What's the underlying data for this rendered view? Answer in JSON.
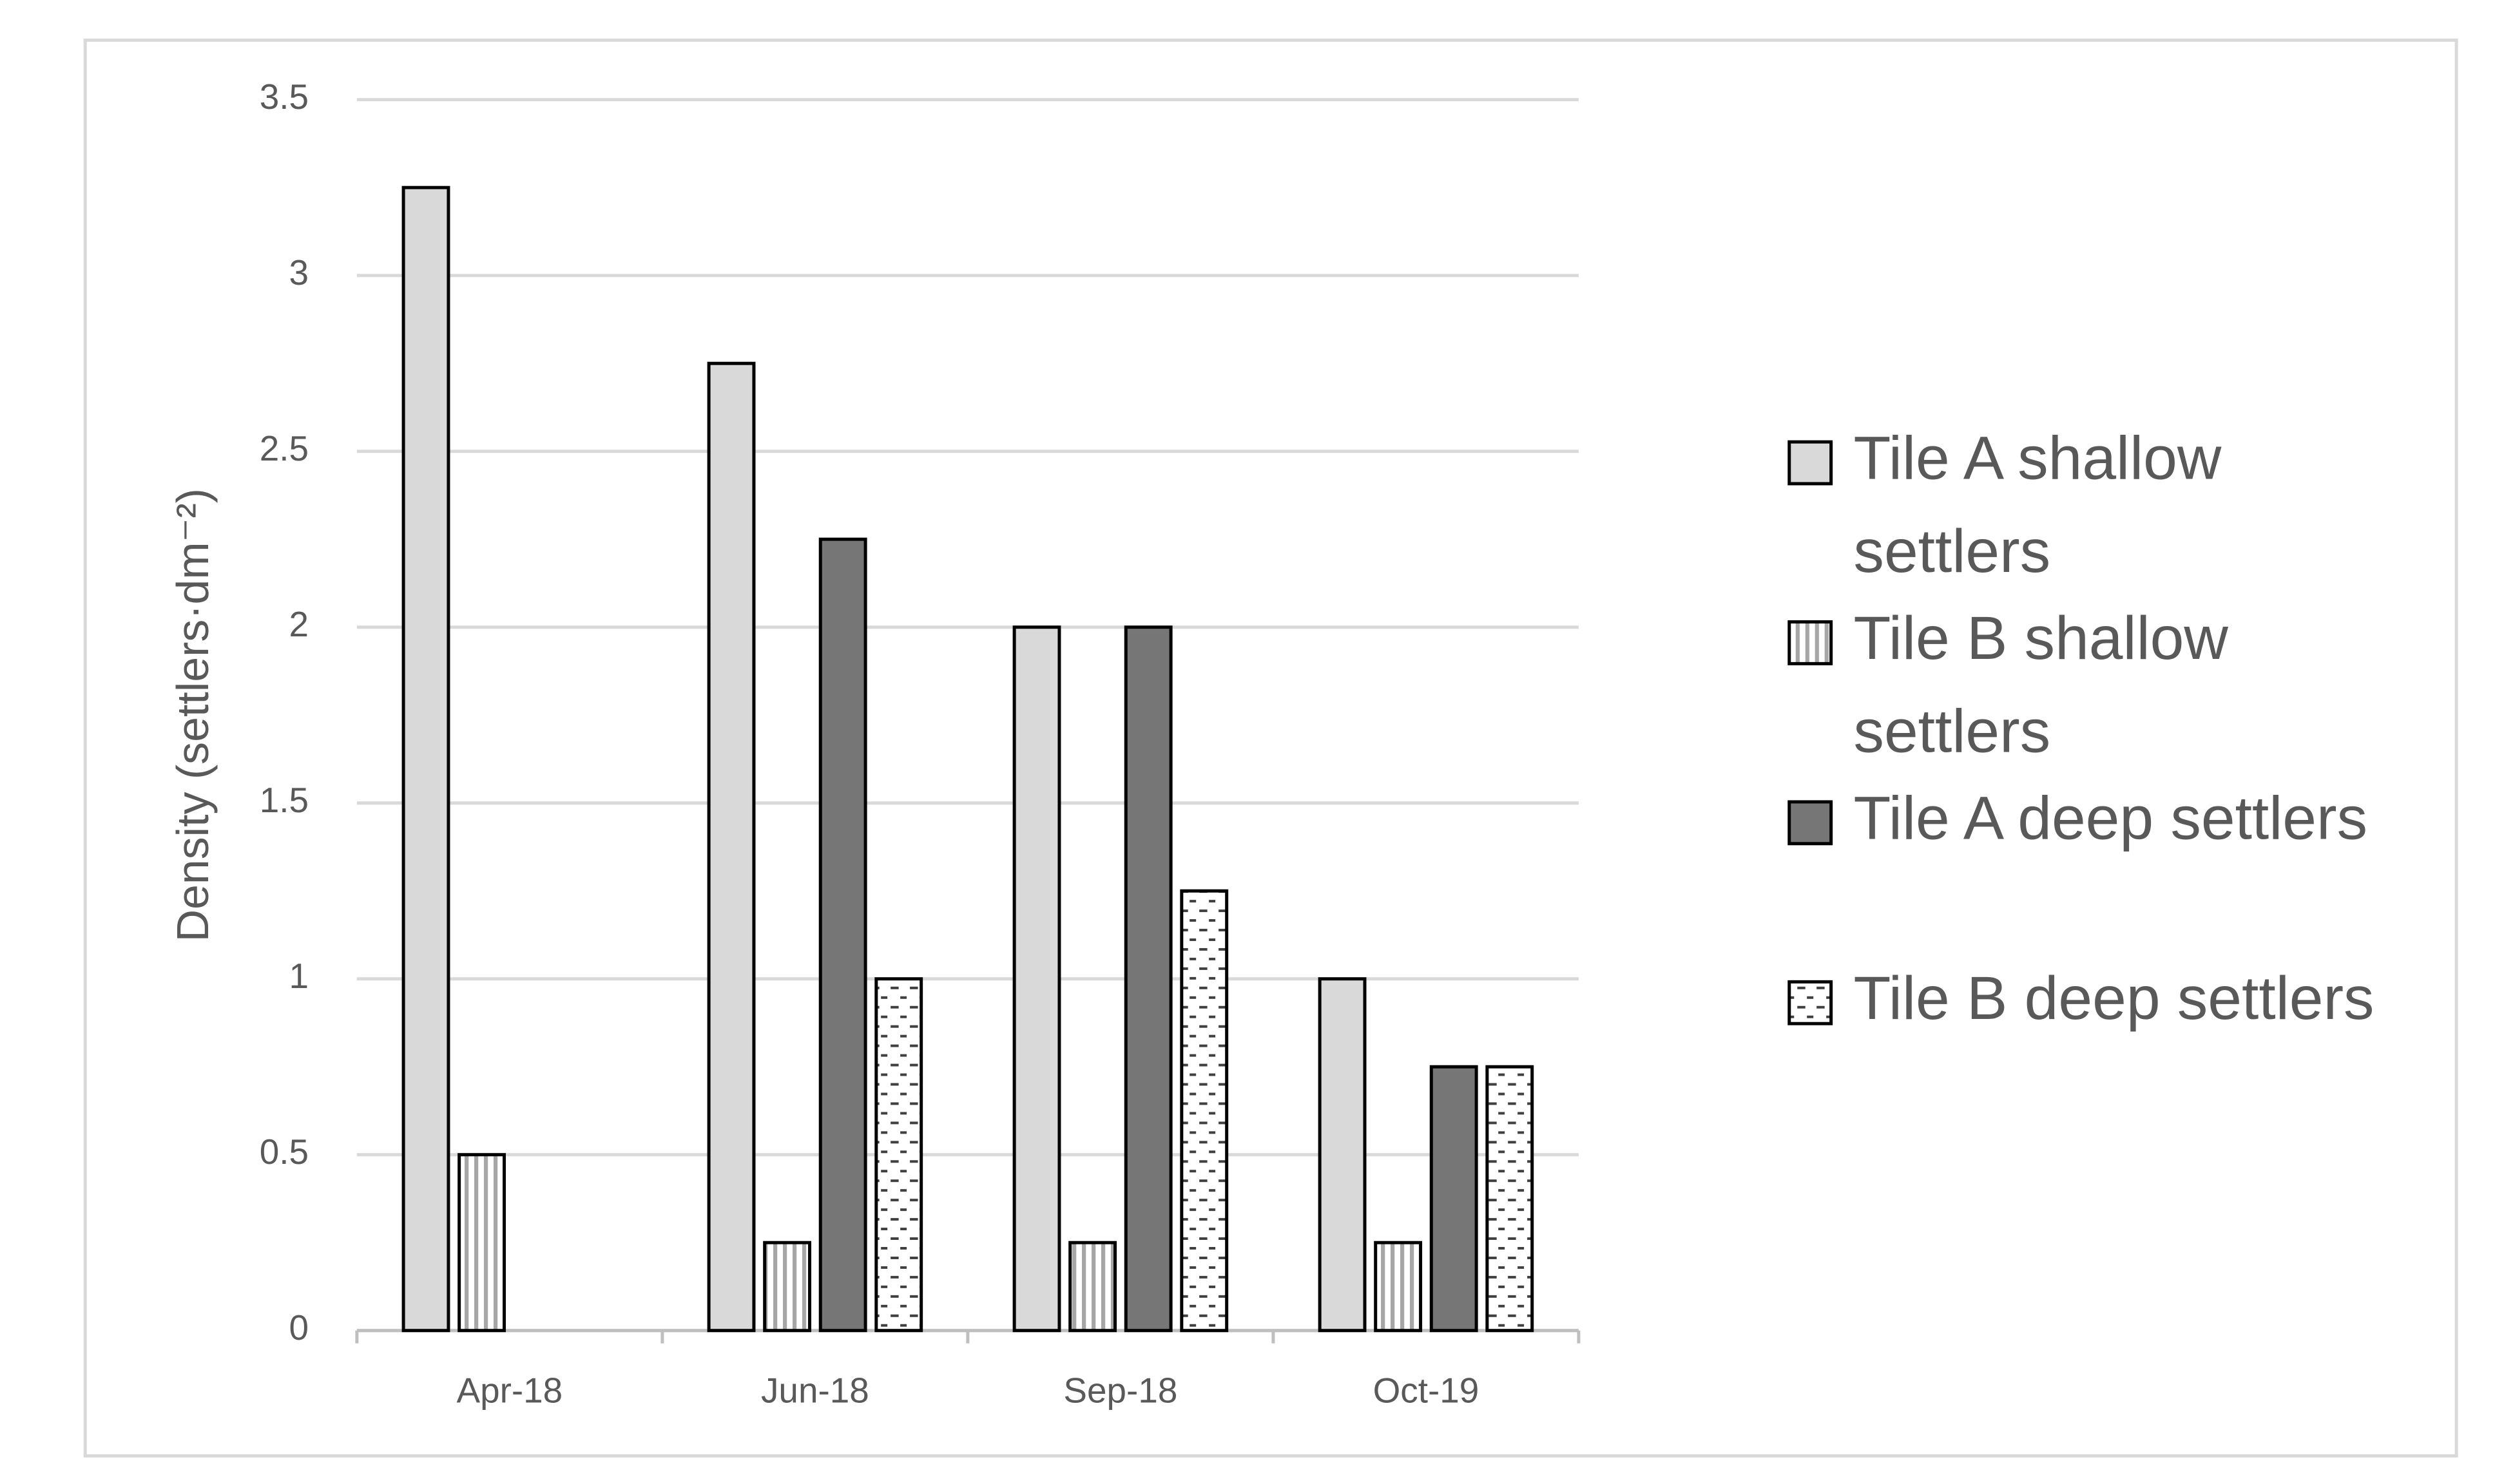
{
  "chart_data": {
    "type": "bar",
    "y_label": "Density (settlers·dm⁻²)",
    "categories": [
      "Apr-18",
      "Jun-18",
      "Sep-18",
      "Oct-19"
    ],
    "series": [
      {
        "name": "Tile A shallow settlers",
        "color": "#d9d9d9",
        "pattern": "solid",
        "values": [
          3.25,
          2.75,
          2.0,
          1.0
        ]
      },
      {
        "name": "Tile B shallow settlers",
        "color": "#ffffff",
        "pattern": "vertical-stripes",
        "values": [
          0.5,
          0.25,
          0.25,
          0.25
        ]
      },
      {
        "name": "Tile A deep settlers",
        "color": "#767676",
        "pattern": "solid",
        "values": [
          0,
          2.25,
          2.0,
          0.75
        ]
      },
      {
        "name": "Tile B deep settlers",
        "color": "#ffffff",
        "pattern": "dashes",
        "values": [
          0,
          1.0,
          1.25,
          0.75
        ]
      }
    ],
    "ylim": [
      0,
      3.5
    ],
    "yticks": [
      0,
      0.5,
      1,
      1.5,
      2,
      2.5,
      3,
      3.5
    ],
    "grid": true,
    "legend": "right"
  }
}
